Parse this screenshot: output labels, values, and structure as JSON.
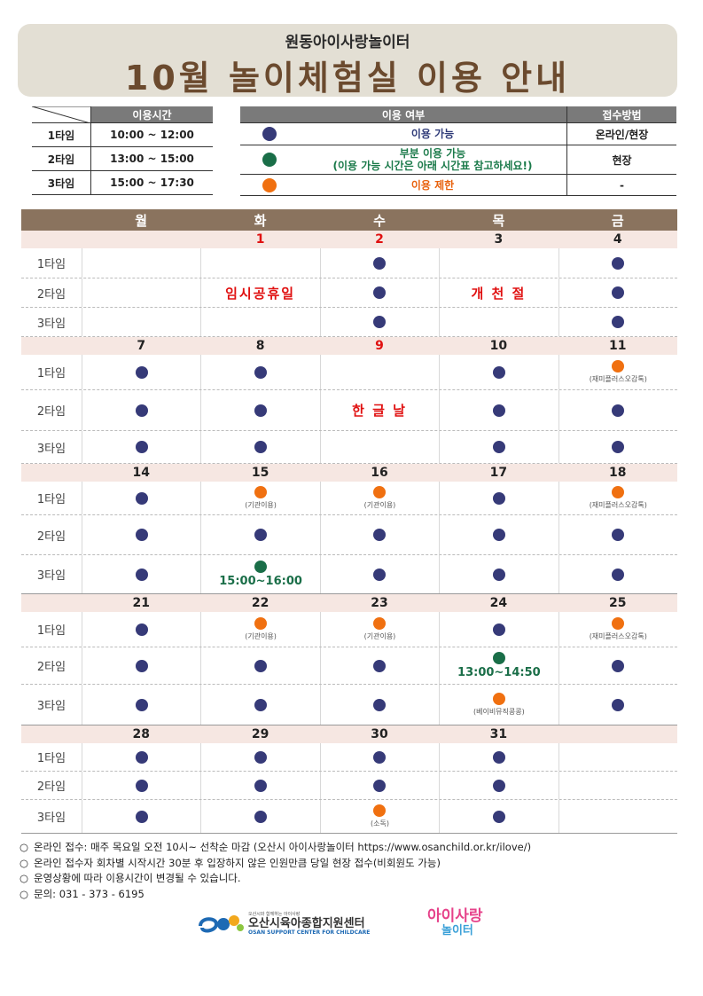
{
  "banner": {
    "subtitle": "원동아이사랑놀이터",
    "title": "10월 놀이체험실 이용 안내"
  },
  "time_table": {
    "header": "이용시간",
    "rows": [
      {
        "label": "1타임",
        "time": "10:00 ~ 12:00"
      },
      {
        "label": "2타임",
        "time": "13:00 ~ 15:00"
      },
      {
        "label": "3타임",
        "time": "15:00 ~ 17:30"
      }
    ]
  },
  "legend": {
    "header_status": "이용 여부",
    "header_method": "접수방법",
    "rows": [
      {
        "dot": "navy",
        "text": "이용 가능",
        "text2": "",
        "method": "온라인/현장"
      },
      {
        "dot": "green",
        "text": "부분 이용 가능",
        "text2": "(이용 가능 시간은 아래 시간표 참고하세요!)",
        "method": "현장"
      },
      {
        "dot": "orange",
        "text": "이용 제한",
        "text2": "",
        "method": "-"
      }
    ]
  },
  "calendar": {
    "weekdays": [
      "월",
      "화",
      "수",
      "목",
      "금"
    ],
    "slot_labels": [
      "1타임",
      "2타임",
      "3타임"
    ],
    "weeks": [
      {
        "dates": [
          "",
          "1",
          "2",
          "3",
          "4"
        ],
        "red_dates": [
          1,
          2
        ],
        "row_heights": [
          34,
          33,
          33
        ],
        "slots": [
          [
            null,
            null,
            {
              "dot": "navy"
            },
            null,
            {
              "dot": "navy"
            }
          ],
          [
            null,
            null,
            {
              "dot": "navy"
            },
            null,
            {
              "dot": "navy"
            }
          ],
          [
            null,
            null,
            {
              "dot": "navy"
            },
            null,
            {
              "dot": "navy"
            }
          ]
        ],
        "holidays": [
          {
            "col": 1,
            "text": "임시공휴일"
          },
          {
            "col": 3,
            "text": "개 천 절"
          }
        ]
      },
      {
        "dates": [
          "7",
          "8",
          "9",
          "10",
          "11"
        ],
        "red_dates": [
          2
        ],
        "row_heights": [
          40,
          46,
          37
        ],
        "slots": [
          [
            {
              "dot": "navy"
            },
            {
              "dot": "navy"
            },
            null,
            {
              "dot": "navy"
            },
            {
              "dot": "orange",
              "note": "(재미플러스오감톡)"
            }
          ],
          [
            {
              "dot": "navy"
            },
            {
              "dot": "navy"
            },
            null,
            {
              "dot": "navy"
            },
            {
              "dot": "navy"
            }
          ],
          [
            {
              "dot": "navy"
            },
            {
              "dot": "navy"
            },
            null,
            {
              "dot": "navy"
            },
            {
              "dot": "navy"
            }
          ]
        ],
        "holidays": [
          {
            "col": 2,
            "text": "한 글 날"
          }
        ]
      },
      {
        "dates": [
          "14",
          "15",
          "16",
          "17",
          "18"
        ],
        "red_dates": [],
        "row_heights": [
          38,
          45,
          44
        ],
        "slots": [
          [
            {
              "dot": "navy"
            },
            {
              "dot": "orange",
              "note": "(기관이용)"
            },
            {
              "dot": "orange",
              "note": "(기관이용)"
            },
            {
              "dot": "navy"
            },
            {
              "dot": "orange",
              "note": "(재미플러스오감톡)"
            }
          ],
          [
            {
              "dot": "navy"
            },
            {
              "dot": "navy"
            },
            {
              "dot": "navy"
            },
            {
              "dot": "navy"
            },
            {
              "dot": "navy"
            }
          ],
          [
            {
              "dot": "navy"
            },
            {
              "dot": "green",
              "time": "15:00~16:00"
            },
            {
              "dot": "navy"
            },
            {
              "dot": "navy"
            },
            {
              "dot": "navy"
            }
          ]
        ],
        "holidays": []
      },
      {
        "dates": [
          "21",
          "22",
          "23",
          "24",
          "25"
        ],
        "red_dates": [],
        "row_heights": [
          40,
          42,
          46
        ],
        "slots": [
          [
            {
              "dot": "navy"
            },
            {
              "dot": "orange",
              "note": "(기관이용)"
            },
            {
              "dot": "orange",
              "note": "(기관이용)"
            },
            {
              "dot": "navy"
            },
            {
              "dot": "orange",
              "note": "(재미플러스오감톡)"
            }
          ],
          [
            {
              "dot": "navy"
            },
            {
              "dot": "navy"
            },
            {
              "dot": "navy"
            },
            {
              "dot": "green",
              "time": "13:00~14:50"
            },
            {
              "dot": "navy"
            }
          ],
          [
            {
              "dot": "navy"
            },
            {
              "dot": "navy"
            },
            {
              "dot": "navy"
            },
            {
              "dot": "orange",
              "note": "(베이비뮤직콩콩)"
            },
            {
              "dot": "navy"
            }
          ]
        ],
        "holidays": []
      },
      {
        "dates": [
          "28",
          "29",
          "30",
          "31",
          ""
        ],
        "red_dates": [],
        "row_heights": [
          32,
          32,
          38
        ],
        "slots": [
          [
            {
              "dot": "navy"
            },
            {
              "dot": "navy"
            },
            {
              "dot": "navy"
            },
            {
              "dot": "navy"
            },
            null
          ],
          [
            {
              "dot": "navy"
            },
            {
              "dot": "navy"
            },
            {
              "dot": "navy"
            },
            {
              "dot": "navy"
            },
            null
          ],
          [
            {
              "dot": "navy"
            },
            {
              "dot": "navy"
            },
            {
              "dot": "orange",
              "note": "(소독)"
            },
            {
              "dot": "navy"
            },
            null
          ]
        ],
        "holidays": []
      }
    ]
  },
  "notes": {
    "bullet": "○",
    "lines": [
      "온라인 접수: 매주 목요일 오전 10시~ 선착순 마감 (오산시 아이사랑놀이터 https://www.osanchild.or.kr/ilove/)",
      "온라인 접수자 회차별 시작시간 30분 후 입장하지 않은 인원만큼 당일 현장 접수(비회원도 가능)",
      "운영상황에 따라 이용시간이 변경될 수 있습니다.",
      "문의: 031 - 373 - 6195"
    ]
  },
  "logos": {
    "center_name": "오산시육아종합지원센터",
    "center_name_en": "OSAN SUPPORT CENTER FOR CHILDCARE",
    "center_tagline": "오산시와 함께하는 아이사랑",
    "playground_line1": "아이사랑",
    "playground_line2": "놀이터"
  },
  "colors": {
    "navy": "#363a78",
    "green": "#1a6e48",
    "orange": "#f07010",
    "header_brown": "#8a735e",
    "banner_bg": "#e3dfd4"
  }
}
